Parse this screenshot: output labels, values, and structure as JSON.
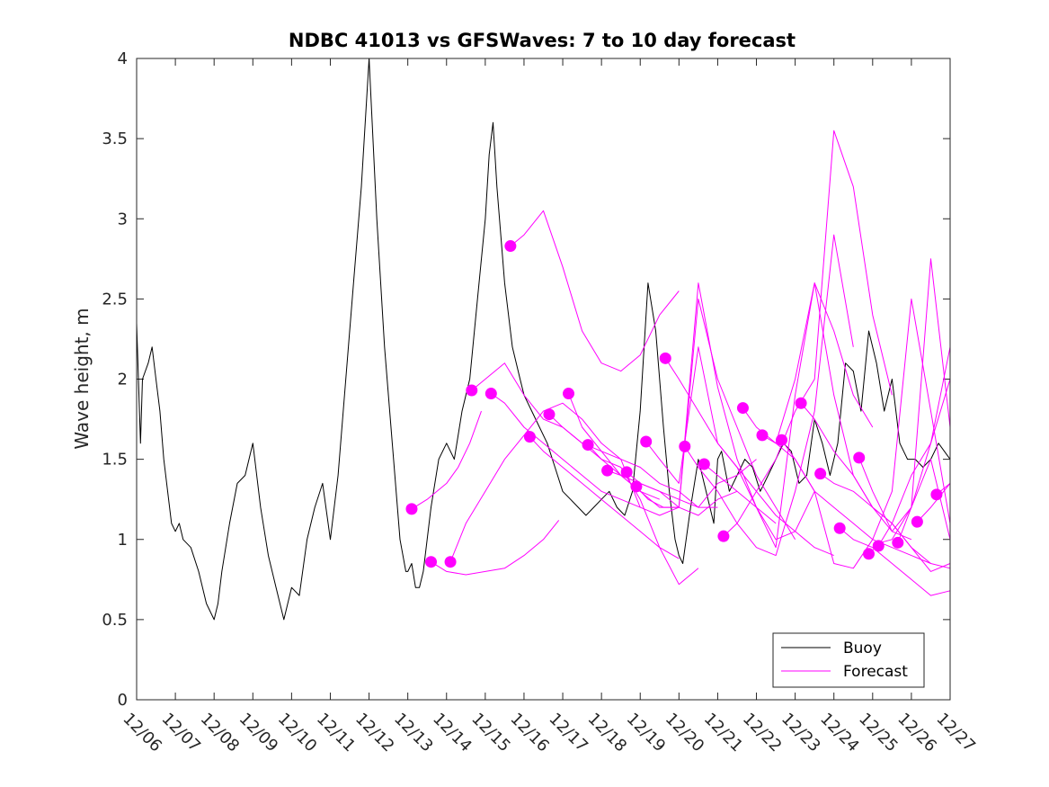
{
  "chart_data": {
    "type": "line",
    "title": "NDBC 41013 vs GFSWaves: 7 to 10 day forecast",
    "xlabel": "",
    "ylabel": "Wave height, m",
    "xlim": [
      0,
      21
    ],
    "ylim": [
      0,
      4
    ],
    "yticks": [
      0,
      0.5,
      1,
      1.5,
      2,
      2.5,
      3,
      3.5,
      4
    ],
    "ytick_labels": [
      "0",
      "0.5",
      "1",
      "1.5",
      "2",
      "2.5",
      "3",
      "3.5",
      "4"
    ],
    "xtick_labels": [
      "12/06",
      "12/07",
      "12/08",
      "12/09",
      "12/10",
      "12/11",
      "12/12",
      "12/13",
      "12/14",
      "12/15",
      "12/16",
      "12/17",
      "12/18",
      "12/19",
      "12/20",
      "12/21",
      "12/22",
      "12/23",
      "12/24",
      "12/25",
      "12/26",
      "12/27"
    ],
    "legend": {
      "position": "bottom-right",
      "entries": [
        {
          "name": "Buoy",
          "color": "#000000"
        },
        {
          "name": "Forecast",
          "color": "#ff00ff"
        }
      ]
    },
    "colors": {
      "buoy": "#000000",
      "forecast": "#ff00ff"
    },
    "series": [
      {
        "name": "Buoy",
        "x": [
          0,
          0.1,
          0.15,
          0.3,
          0.4,
          0.5,
          0.6,
          0.7,
          0.8,
          0.9,
          1.0,
          1.1,
          1.2,
          1.4,
          1.6,
          1.8,
          2.0,
          2.1,
          2.2,
          2.4,
          2.6,
          2.8,
          3.0,
          3.1,
          3.2,
          3.4,
          3.6,
          3.8,
          3.9,
          4.0,
          4.2,
          4.4,
          4.6,
          4.8,
          5.0,
          5.2,
          5.4,
          5.6,
          5.8,
          6.0,
          6.2,
          6.4,
          6.6,
          6.8,
          6.95,
          7.0,
          7.1,
          7.2,
          7.3,
          7.4,
          7.5,
          7.6,
          7.8,
          8.0,
          8.2,
          8.4,
          8.6,
          8.8,
          9.0,
          9.1,
          9.2,
          9.3,
          9.4,
          9.5,
          9.7,
          9.9,
          10.0,
          10.2,
          10.4,
          10.6,
          10.8,
          11.0,
          11.2,
          11.4,
          11.6,
          11.8,
          12.0,
          12.2,
          12.4,
          12.6,
          12.8,
          13.0,
          13.2,
          13.4,
          13.6,
          13.75,
          13.9,
          14.0,
          14.1,
          14.3,
          14.5,
          14.7,
          14.9,
          15.0,
          15.1,
          15.3,
          15.5,
          15.7,
          15.9,
          16.1,
          16.3,
          16.5,
          16.7,
          16.9,
          17.1,
          17.3,
          17.5,
          17.7,
          17.9,
          18.1,
          18.3,
          18.5,
          18.7,
          18.9,
          19.1,
          19.3,
          19.5,
          19.7,
          19.9,
          20.1,
          20.3,
          20.5,
          20.7,
          21.0
        ],
        "values": [
          2.35,
          1.6,
          2.0,
          2.1,
          2.2,
          2.0,
          1.8,
          1.5,
          1.3,
          1.1,
          1.05,
          1.1,
          1.0,
          0.95,
          0.8,
          0.6,
          0.5,
          0.6,
          0.8,
          1.1,
          1.35,
          1.4,
          1.6,
          1.4,
          1.2,
          0.9,
          0.7,
          0.5,
          0.6,
          0.7,
          0.65,
          1.0,
          1.2,
          1.35,
          1.0,
          1.4,
          2.0,
          2.6,
          3.2,
          4.0,
          3.0,
          2.2,
          1.6,
          1.0,
          0.8,
          0.8,
          0.85,
          0.7,
          0.7,
          0.8,
          1.0,
          1.2,
          1.5,
          1.6,
          1.5,
          1.8,
          2.0,
          2.5,
          3.0,
          3.4,
          3.6,
          3.2,
          2.9,
          2.6,
          2.2,
          2.0,
          1.9,
          1.8,
          1.7,
          1.6,
          1.45,
          1.3,
          1.25,
          1.2,
          1.15,
          1.2,
          1.25,
          1.3,
          1.2,
          1.15,
          1.3,
          1.8,
          2.6,
          2.3,
          1.7,
          1.3,
          1.0,
          0.9,
          0.85,
          1.2,
          1.5,
          1.3,
          1.1,
          1.5,
          1.55,
          1.3,
          1.4,
          1.5,
          1.45,
          1.3,
          1.4,
          1.5,
          1.6,
          1.55,
          1.35,
          1.4,
          1.75,
          1.6,
          1.4,
          1.6,
          2.1,
          2.05,
          1.8,
          2.3,
          2.1,
          1.8,
          2.0,
          1.6,
          1.5,
          1.5,
          1.45,
          1.5,
          1.6,
          1.5
        ]
      },
      {
        "name": "Forecast",
        "x": [
          7.1,
          7.5,
          8.0,
          8.3,
          8.6,
          8.9
        ],
        "values": [
          1.19,
          1.25,
          1.35,
          1.45,
          1.6,
          1.8
        ]
      },
      {
        "name": "Forecast",
        "x": [
          7.6,
          8.0,
          8.5,
          9.0,
          9.5,
          10.0,
          10.5,
          10.9
        ],
        "values": [
          0.86,
          0.8,
          0.78,
          0.8,
          0.82,
          0.9,
          1.0,
          1.12
        ]
      },
      {
        "name": "Forecast",
        "x": [
          8.1,
          8.5,
          9.0,
          9.5,
          10.0,
          10.5,
          11.0,
          11.5,
          12.0,
          12.5,
          13.0
        ],
        "values": [
          0.86,
          1.1,
          1.3,
          1.5,
          1.65,
          1.8,
          1.85,
          1.75,
          1.6,
          1.5,
          1.2
        ]
      },
      {
        "name": "Forecast",
        "x": [
          8.65,
          9.0,
          9.5,
          10.0,
          10.5,
          11.0,
          11.5,
          12.0,
          12.5,
          13.0,
          13.5
        ],
        "values": [
          1.93,
          2.0,
          2.1,
          1.9,
          1.75,
          1.7,
          1.6,
          1.55,
          1.4,
          1.3,
          1.25
        ]
      },
      {
        "name": "Forecast",
        "x": [
          9.15,
          9.5,
          10.0,
          10.5,
          11.0,
          11.5,
          12.0,
          12.5,
          13.0,
          13.5,
          14.0
        ],
        "values": [
          1.91,
          1.85,
          1.7,
          1.6,
          1.5,
          1.4,
          1.3,
          1.25,
          1.2,
          1.15,
          1.2
        ]
      },
      {
        "name": "Forecast",
        "x": [
          9.65,
          10.0,
          10.5,
          11.0,
          11.5,
          12.0,
          12.5,
          13.0,
          13.5,
          14.0
        ],
        "values": [
          2.83,
          2.9,
          3.05,
          2.7,
          2.3,
          2.1,
          2.05,
          2.15,
          2.4,
          2.55
        ]
      },
      {
        "name": "Forecast",
        "x": [
          10.15,
          10.5,
          11.0,
          11.5,
          12.0,
          12.5,
          13.0,
          13.5,
          14.0
        ],
        "values": [
          1.64,
          1.55,
          1.45,
          1.35,
          1.25,
          1.15,
          1.05,
          0.95,
          0.88
        ]
      },
      {
        "name": "Forecast",
        "x": [
          10.65,
          11.0,
          11.5,
          12.0,
          12.5,
          13.0,
          13.5,
          14.0,
          14.5
        ],
        "values": [
          1.78,
          1.7,
          1.6,
          1.5,
          1.45,
          1.25,
          0.95,
          0.72,
          0.82
        ]
      },
      {
        "name": "Forecast",
        "x": [
          11.15,
          11.5,
          12.0,
          12.5,
          13.0,
          13.5,
          14.0,
          14.5,
          15.0
        ],
        "values": [
          1.91,
          1.7,
          1.55,
          1.5,
          1.45,
          1.35,
          1.3,
          1.2,
          1.2
        ]
      },
      {
        "name": "Forecast",
        "x": [
          11.65,
          12.0,
          12.5,
          13.0,
          13.5,
          14.0,
          14.5,
          15.0,
          15.5
        ],
        "values": [
          1.59,
          1.5,
          1.4,
          1.3,
          1.2,
          1.2,
          1.15,
          1.25,
          1.3
        ]
      },
      {
        "name": "Forecast",
        "x": [
          12.15,
          12.5,
          13.0,
          13.5,
          14.0,
          14.5,
          15.0,
          15.5,
          16.0
        ],
        "values": [
          1.43,
          1.4,
          1.35,
          1.3,
          1.25,
          1.2,
          1.35,
          1.4,
          1.5
        ]
      },
      {
        "name": "Forecast",
        "x": [
          12.65,
          13.0,
          13.5,
          14.0,
          14.5,
          15.0,
          15.5,
          16.0,
          16.5
        ],
        "values": [
          1.42,
          1.35,
          1.3,
          1.2,
          2.6,
          1.95,
          1.5,
          1.2,
          1.1
        ]
      },
      {
        "name": "Forecast",
        "x": [
          12.9,
          13.2,
          13.6,
          14.0,
          14.5,
          15.0,
          15.5,
          16.0,
          16.5,
          17.0
        ],
        "values": [
          1.33,
          1.25,
          1.2,
          1.2,
          2.5,
          2.0,
          1.7,
          1.4,
          1.2,
          1.0
        ]
      },
      {
        "name": "Forecast",
        "x": [
          13.15,
          13.5,
          14.0,
          14.5,
          15.0,
          15.5,
          16.0,
          16.5,
          17.0,
          17.5
        ],
        "values": [
          1.61,
          1.5,
          1.35,
          2.2,
          1.6,
          1.45,
          1.2,
          1.0,
          1.05,
          1.3
        ]
      },
      {
        "name": "Forecast",
        "x": [
          13.65,
          14.0,
          14.5,
          15.0,
          15.5,
          16.0,
          16.5,
          17.0,
          17.5,
          18.0
        ],
        "values": [
          2.13,
          2.0,
          1.8,
          1.6,
          1.45,
          1.3,
          1.15,
          1.05,
          0.95,
          0.9
        ]
      },
      {
        "name": "Forecast",
        "x": [
          14.15,
          14.5,
          15.0,
          15.5,
          16.0,
          16.5,
          17.0,
          17.5,
          18.0,
          18.5
        ],
        "values": [
          1.58,
          1.45,
          1.3,
          1.1,
          0.95,
          0.9,
          1.3,
          1.8,
          2.9,
          2.2
        ]
      },
      {
        "name": "Forecast",
        "x": [
          14.65,
          15.0,
          15.5,
          16.0,
          16.5,
          17.0,
          17.5,
          18.0,
          18.5,
          19.0
        ],
        "values": [
          1.47,
          1.4,
          1.3,
          1.2,
          0.95,
          1.9,
          2.6,
          2.3,
          1.9,
          1.7
        ]
      },
      {
        "name": "Forecast",
        "x": [
          15.15,
          15.5,
          16.0,
          16.5,
          17.0,
          17.5,
          18.0,
          18.5,
          19.0,
          19.5
        ],
        "values": [
          1.02,
          1.1,
          1.3,
          1.5,
          1.8,
          2.0,
          3.55,
          3.2,
          2.4,
          1.9
        ]
      },
      {
        "name": "Forecast",
        "x": [
          15.65,
          16.0,
          16.5,
          17.0,
          17.5,
          18.0,
          18.5,
          19.0,
          19.5,
          20.0
        ],
        "values": [
          1.82,
          1.7,
          1.6,
          2.0,
          2.6,
          1.9,
          1.4,
          1.2,
          1.05,
          1.0
        ]
      },
      {
        "name": "Forecast",
        "x": [
          16.15,
          16.5,
          17.0,
          17.5,
          18.0,
          18.5,
          19.0,
          19.5,
          20.0,
          20.5
        ],
        "values": [
          1.65,
          1.6,
          1.5,
          1.3,
          1.2,
          1.1,
          1.0,
          0.95,
          0.9,
          0.85
        ]
      },
      {
        "name": "Forecast",
        "x": [
          16.65,
          17.0,
          17.5,
          18.0,
          18.5,
          19.0,
          19.5,
          20.0,
          20.5,
          21.0
        ],
        "values": [
          1.62,
          1.5,
          1.3,
          0.85,
          0.82,
          1.0,
          1.3,
          2.5,
          1.8,
          1.1
        ]
      },
      {
        "name": "Forecast",
        "x": [
          17.15,
          17.5,
          18.0,
          18.5,
          19.0,
          19.5,
          20.0,
          20.5,
          21.0
        ],
        "values": [
          1.85,
          1.75,
          1.55,
          1.4,
          1.2,
          1.1,
          0.95,
          0.85,
          0.82
        ]
      },
      {
        "name": "Forecast",
        "x": [
          17.65,
          18.0,
          18.5,
          19.0,
          19.5,
          20.0,
          20.5,
          21.0
        ],
        "values": [
          1.41,
          1.35,
          1.3,
          1.2,
          1.1,
          0.95,
          0.8,
          0.85
        ]
      },
      {
        "name": "Forecast",
        "x": [
          18.15,
          18.5,
          19.0,
          19.5,
          20.0,
          20.5,
          21.0
        ],
        "values": [
          1.07,
          1.0,
          0.95,
          0.85,
          0.75,
          0.65,
          0.68
        ]
      },
      {
        "name": "Forecast",
        "x": [
          18.65,
          19.0,
          19.5,
          20.0,
          20.5,
          21.0
        ],
        "values": [
          1.51,
          1.3,
          1.05,
          1.2,
          1.5,
          1.0
        ]
      },
      {
        "name": "Forecast",
        "x": [
          18.9,
          19.2,
          19.5,
          20.0,
          20.5,
          21.0
        ],
        "values": [
          0.91,
          0.98,
          1.0,
          1.2,
          2.75,
          1.7
        ]
      },
      {
        "name": "Forecast",
        "x": [
          19.15,
          19.5,
          20.0,
          20.5,
          21.0
        ],
        "values": [
          0.96,
          1.1,
          1.4,
          1.6,
          2.0
        ]
      },
      {
        "name": "Forecast",
        "x": [
          19.65,
          20.0,
          20.5,
          21.0
        ],
        "values": [
          0.98,
          1.2,
          1.6,
          2.2
        ]
      },
      {
        "name": "Forecast",
        "x": [
          20.15,
          20.5,
          21.0
        ],
        "values": [
          1.11,
          1.2,
          1.35
        ]
      },
      {
        "name": "Forecast",
        "x": [
          20.65,
          21.0
        ],
        "values": [
          1.28,
          1.35
        ]
      }
    ],
    "markers": {
      "name": "Forecast start",
      "x": [
        7.1,
        7.6,
        8.1,
        8.65,
        9.15,
        9.65,
        10.15,
        10.65,
        11.15,
        11.65,
        12.15,
        12.65,
        12.9,
        13.15,
        13.65,
        14.15,
        14.65,
        15.15,
        15.65,
        16.15,
        16.65,
        17.15,
        17.65,
        18.15,
        18.65,
        18.9,
        19.15,
        19.65,
        20.15,
        20.65
      ],
      "values": [
        1.19,
        0.86,
        0.86,
        1.93,
        1.91,
        2.83,
        1.64,
        1.78,
        1.91,
        1.59,
        1.43,
        1.42,
        1.33,
        1.61,
        2.13,
        1.58,
        1.47,
        1.02,
        1.82,
        1.65,
        1.62,
        1.85,
        1.41,
        1.07,
        1.51,
        0.91,
        0.96,
        0.98,
        1.11,
        1.28
      ]
    }
  }
}
